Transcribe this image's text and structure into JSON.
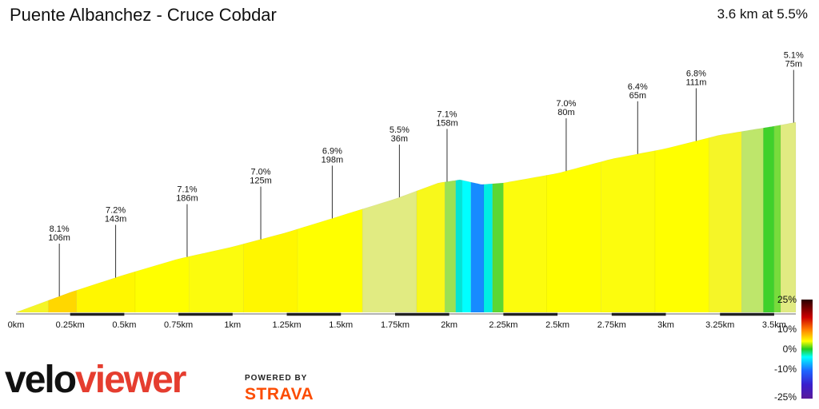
{
  "title": "Puente Albanchez - Cruce Cobdar",
  "summary": "3.6 km at 5.5%",
  "brand": {
    "velo": "velo",
    "viewer": "viewer",
    "powered_by": "POWERED BY",
    "strava": "STRAVA"
  },
  "chart_data": {
    "type": "area",
    "title": "Puente Albanchez - Cruce Cobdar",
    "xlabel": "",
    "ylabel": "",
    "xlim": [
      0,
      3.6
    ],
    "x_ticks": [
      "0km",
      "0.25km",
      "0.5km",
      "0.75km",
      "1km",
      "1.25km",
      "1.5km",
      "1.75km",
      "2km",
      "2.25km",
      "2.5km",
      "2.75km",
      "3km",
      "3.25km",
      "3.5km"
    ],
    "profile": [
      [
        0.0,
        0
      ],
      [
        0.25,
        25
      ],
      [
        0.5,
        47
      ],
      [
        0.75,
        67
      ],
      [
        1.0,
        82
      ],
      [
        1.25,
        100
      ],
      [
        1.5,
        121
      ],
      [
        1.75,
        142
      ],
      [
        1.95,
        162
      ],
      [
        2.05,
        166
      ],
      [
        2.15,
        160
      ],
      [
        2.25,
        162
      ],
      [
        2.5,
        174
      ],
      [
        2.75,
        192
      ],
      [
        3.0,
        205
      ],
      [
        3.25,
        222
      ],
      [
        3.5,
        233
      ],
      [
        3.6,
        238
      ]
    ],
    "segment_grades": [
      [
        0.0,
        0.15,
        5.0
      ],
      [
        0.15,
        0.28,
        9.0
      ],
      [
        0.28,
        0.55,
        7.0
      ],
      [
        0.55,
        0.8,
        6.5
      ],
      [
        0.8,
        1.05,
        6.0
      ],
      [
        1.05,
        1.3,
        7.0
      ],
      [
        1.3,
        1.6,
        6.5
      ],
      [
        1.6,
        1.85,
        3.0
      ],
      [
        1.85,
        1.98,
        5.5
      ],
      [
        1.98,
        2.03,
        2.0
      ],
      [
        2.03,
        2.06,
        -3.0
      ],
      [
        2.06,
        2.1,
        -6.0
      ],
      [
        2.1,
        2.16,
        -9.0
      ],
      [
        2.16,
        2.2,
        -4.0
      ],
      [
        2.2,
        2.25,
        1.0
      ],
      [
        2.25,
        2.45,
        6.0
      ],
      [
        2.45,
        2.7,
        6.5
      ],
      [
        2.7,
        2.95,
        6.0
      ],
      [
        2.95,
        3.2,
        6.5
      ],
      [
        3.2,
        3.35,
        5.0
      ],
      [
        3.35,
        3.45,
        2.5
      ],
      [
        3.45,
        3.5,
        0.5
      ],
      [
        3.5,
        3.53,
        1.5
      ],
      [
        3.53,
        3.6,
        3.0
      ]
    ],
    "annotations": [
      {
        "x": 0.2,
        "grade": "8.1%",
        "length": "106m"
      },
      {
        "x": 0.46,
        "grade": "7.2%",
        "length": "143m"
      },
      {
        "x": 0.79,
        "grade": "7.1%",
        "length": "186m"
      },
      {
        "x": 1.13,
        "grade": "7.0%",
        "length": "125m"
      },
      {
        "x": 1.46,
        "grade": "6.9%",
        "length": "198m"
      },
      {
        "x": 1.77,
        "grade": "5.5%",
        "length": "36m"
      },
      {
        "x": 1.99,
        "grade": "7.1%",
        "length": "158m"
      },
      {
        "x": 2.54,
        "grade": "7.0%",
        "length": "80m"
      },
      {
        "x": 2.87,
        "grade": "6.4%",
        "length": "65m"
      },
      {
        "x": 3.14,
        "grade": "6.8%",
        "length": "111m"
      },
      {
        "x": 3.59,
        "grade": "5.1%",
        "length": "75m"
      }
    ],
    "legend": {
      "labels": [
        "25%",
        "10%",
        "0%",
        "-10%",
        "-25%"
      ],
      "values": [
        25,
        10,
        0,
        -10,
        -25
      ]
    },
    "colors": {
      "road_line": "#333333",
      "road_dash": "#000000"
    }
  }
}
